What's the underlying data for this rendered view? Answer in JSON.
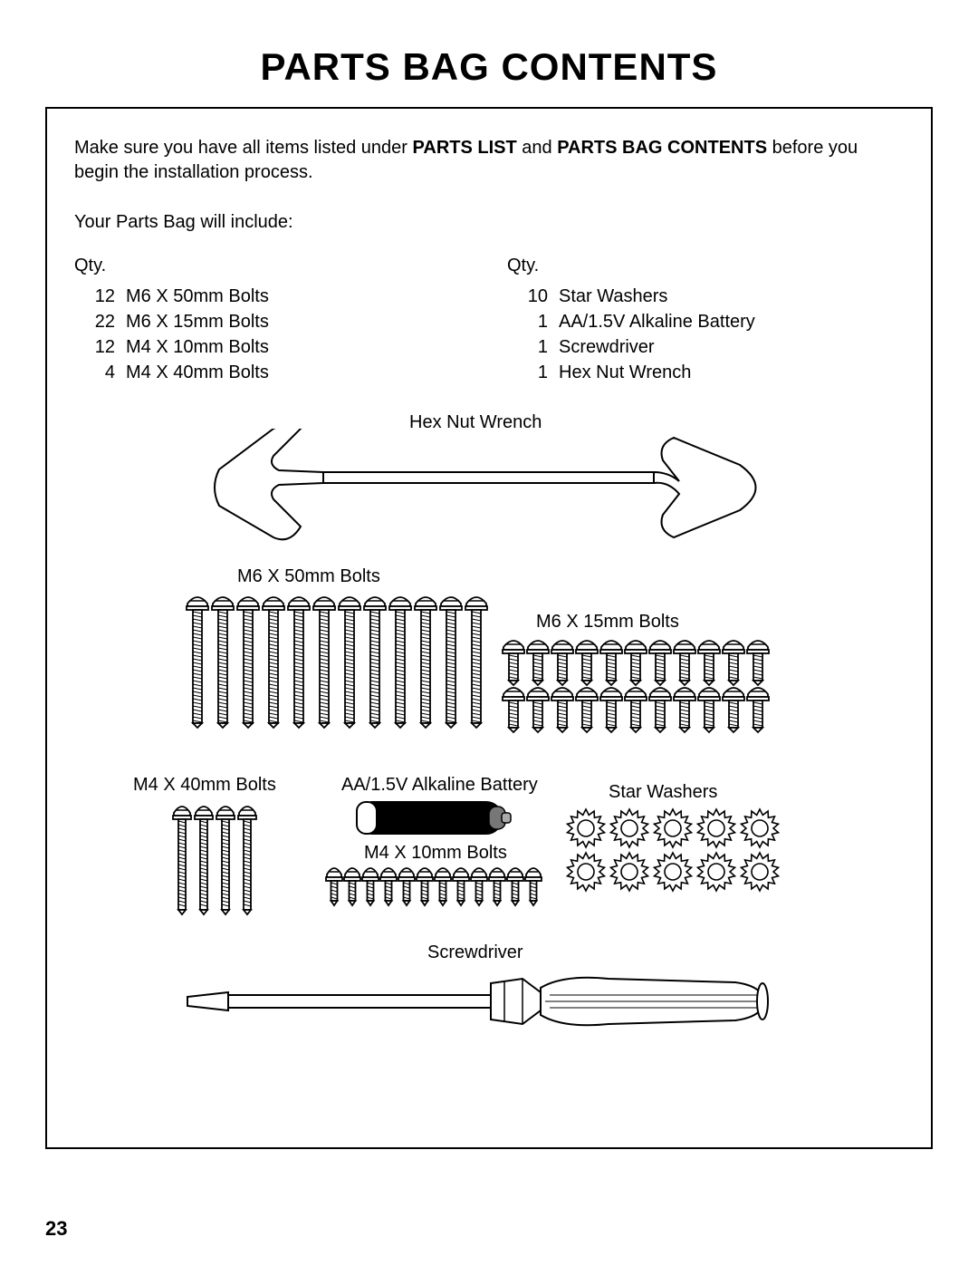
{
  "title": "PARTS BAG CONTENTS",
  "intro_pre": "Make sure you have all items listed under ",
  "intro_b1": "PARTS LIST",
  "intro_mid": " and ",
  "intro_b2": "PARTS BAG CONTENTS",
  "intro_post": " before you begin the installation process.",
  "subintro": "Your Parts Bag will include:",
  "qty_label": "Qty.",
  "left_col": [
    {
      "qty": "12",
      "name": "M6 X 50mm Bolts"
    },
    {
      "qty": "22",
      "name": "M6 X 15mm Bolts"
    },
    {
      "qty": "12",
      "name": "M4 X 10mm Bolts"
    },
    {
      "qty": "4",
      "name": "M4 X 40mm Bolts"
    }
  ],
  "right_col": [
    {
      "qty": "10",
      "name": "Star Washers"
    },
    {
      "qty": "1",
      "name": "AA/1.5V Alkaline Battery"
    },
    {
      "qty": "1",
      "name": "Screwdriver"
    },
    {
      "qty": "1",
      "name": "Hex Nut Wrench"
    }
  ],
  "labels": {
    "wrench": "Hex Nut Wrench",
    "m6_50": "M6 X 50mm Bolts",
    "m6_15": "M6 X 15mm Bolts",
    "m4_40": "M4 X 40mm Bolts",
    "battery": "AA/1.5V Alkaline Battery",
    "m4_10": "M4 X 10mm Bolts",
    "star": "Star Washers",
    "screwdriver": "Screwdriver"
  },
  "page_number": "23",
  "colors": {
    "stroke": "#000000",
    "fill_light": "#ffffff",
    "fill_dark": "#000000",
    "fill_gray": "#666666"
  }
}
